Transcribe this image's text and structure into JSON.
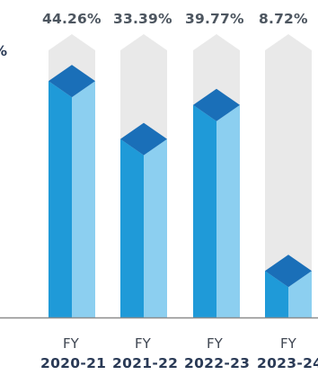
{
  "chart_data": {
    "type": "bar",
    "categories": [
      {
        "prefix": "FY",
        "year": "2020-21"
      },
      {
        "prefix": "FY",
        "year": "2021-22"
      },
      {
        "prefix": "FY",
        "year": "2022-23"
      },
      {
        "prefix": "FY",
        "year": "2023-24"
      }
    ],
    "values": [
      44.26,
      33.39,
      39.77,
      8.72
    ],
    "value_labels": [
      "44.26%",
      "33.39%",
      "39.77%",
      "8.72%"
    ],
    "unit_fragment": "%",
    "ylim": [
      0,
      50
    ],
    "grid": false,
    "colors": {
      "bar_front": "#1f9ad8",
      "bar_side": "#8ccff0",
      "bar_top": "#1a6fb8",
      "track": "#e9e9e9",
      "baseline": "#8c8c8c",
      "value_text": "#4d5660",
      "category_text": "#2a3a56"
    }
  }
}
